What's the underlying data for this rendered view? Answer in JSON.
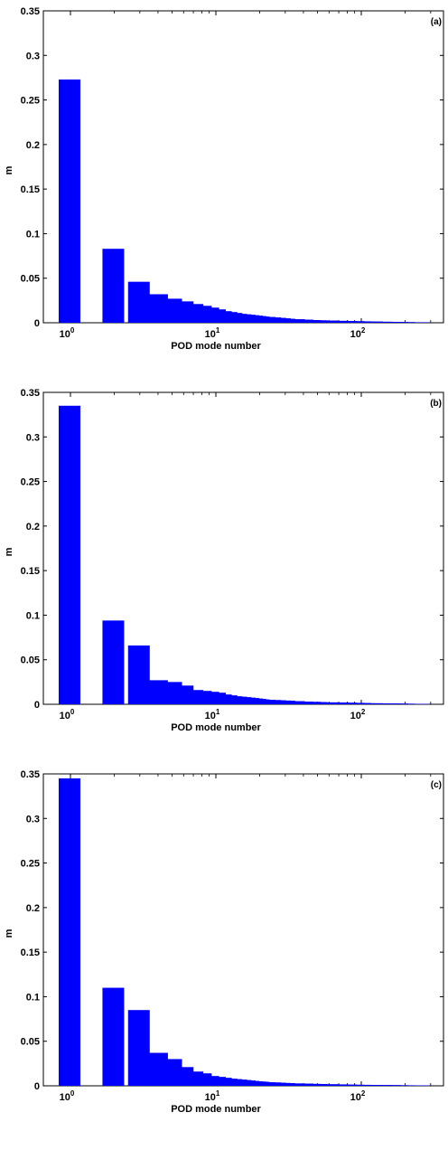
{
  "chart_data": [
    {
      "type": "bar",
      "title": "",
      "panel_label": "(a)",
      "xlabel": "POD mode number",
      "ylabel": "m",
      "x_scale": "log",
      "ylim": [
        0,
        0.35
      ],
      "yticks": [
        "0",
        "0.05",
        "0.1",
        "0.15",
        "0.2",
        "0.25",
        "0.3",
        "0.35"
      ],
      "xticks": [
        {
          "base": "10",
          "exp": "0"
        },
        {
          "base": "10",
          "exp": "1"
        },
        {
          "base": "10",
          "exp": "2"
        }
      ],
      "x": [
        1,
        2,
        3,
        4,
        5,
        6,
        7,
        8,
        9,
        10,
        11,
        12,
        13,
        14,
        15,
        16,
        17,
        18,
        19,
        20,
        22,
        24,
        26,
        28,
        30,
        35,
        40,
        45,
        50,
        60,
        70,
        80,
        90,
        100,
        120,
        140,
        160,
        180,
        200,
        250
      ],
      "values": [
        0.273,
        0.083,
        0.046,
        0.032,
        0.027,
        0.024,
        0.021,
        0.019,
        0.017,
        0.015,
        0.013,
        0.012,
        0.011,
        0.01,
        0.0095,
        0.009,
        0.0085,
        0.008,
        0.0075,
        0.007,
        0.0065,
        0.006,
        0.0055,
        0.005,
        0.0045,
        0.004,
        0.0035,
        0.003,
        0.0028,
        0.0025,
        0.0022,
        0.002,
        0.0018,
        0.0016,
        0.0014,
        0.0012,
        0.001,
        0.0009,
        0.0008,
        0.0006
      ]
    },
    {
      "type": "bar",
      "title": "",
      "panel_label": "(b)",
      "xlabel": "POD mode number",
      "ylabel": "m",
      "x_scale": "log",
      "ylim": [
        0,
        0.35
      ],
      "yticks": [
        "0",
        "0.05",
        "0.1",
        "0.15",
        "0.2",
        "0.25",
        "0.3",
        "0.35"
      ],
      "xticks": [
        {
          "base": "10",
          "exp": "0"
        },
        {
          "base": "10",
          "exp": "1"
        },
        {
          "base": "10",
          "exp": "2"
        }
      ],
      "x": [
        1,
        2,
        3,
        4,
        5,
        6,
        7,
        8,
        9,
        10,
        11,
        12,
        13,
        14,
        15,
        16,
        17,
        18,
        19,
        20,
        22,
        24,
        26,
        28,
        30,
        35,
        40,
        45,
        50,
        60,
        70,
        80,
        90,
        100,
        120,
        140,
        160,
        180,
        200,
        250
      ],
      "values": [
        0.335,
        0.094,
        0.066,
        0.027,
        0.025,
        0.021,
        0.016,
        0.015,
        0.014,
        0.013,
        0.011,
        0.01,
        0.009,
        0.0085,
        0.008,
        0.0075,
        0.007,
        0.0065,
        0.006,
        0.0055,
        0.005,
        0.0048,
        0.0045,
        0.0042,
        0.004,
        0.0035,
        0.003,
        0.0028,
        0.0025,
        0.0022,
        0.002,
        0.0018,
        0.0016,
        0.0014,
        0.0012,
        0.001,
        0.0009,
        0.0008,
        0.0007,
        0.0005
      ]
    },
    {
      "type": "bar",
      "title": "",
      "panel_label": "(c)",
      "xlabel": "POD mode number",
      "ylabel": "m",
      "x_scale": "log",
      "ylim": [
        0,
        0.35
      ],
      "yticks": [
        "0",
        "0.05",
        "0.1",
        "0.15",
        "0.2",
        "0.25",
        "0.3",
        "0.35"
      ],
      "xticks": [
        {
          "base": "10",
          "exp": "0"
        },
        {
          "base": "10",
          "exp": "1"
        },
        {
          "base": "10",
          "exp": "2"
        }
      ],
      "x": [
        1,
        2,
        3,
        4,
        5,
        6,
        7,
        8,
        9,
        10,
        11,
        12,
        13,
        14,
        15,
        16,
        17,
        18,
        19,
        20,
        22,
        24,
        26,
        28,
        30,
        35,
        40,
        45,
        50,
        60,
        70,
        80,
        90,
        100,
        120,
        140,
        160,
        180,
        200,
        250
      ],
      "values": [
        0.345,
        0.11,
        0.085,
        0.037,
        0.03,
        0.021,
        0.016,
        0.014,
        0.011,
        0.01,
        0.009,
        0.008,
        0.0075,
        0.007,
        0.0065,
        0.006,
        0.0055,
        0.005,
        0.0048,
        0.0045,
        0.004,
        0.0038,
        0.0035,
        0.0032,
        0.003,
        0.0027,
        0.0025,
        0.0022,
        0.002,
        0.0018,
        0.0016,
        0.0014,
        0.0012,
        0.0011,
        0.001,
        0.0009,
        0.0008,
        0.0007,
        0.0006,
        0.0005
      ]
    }
  ],
  "colors": {
    "bar": "#0000ff",
    "axis": "#000000",
    "background": "#ffffff"
  }
}
